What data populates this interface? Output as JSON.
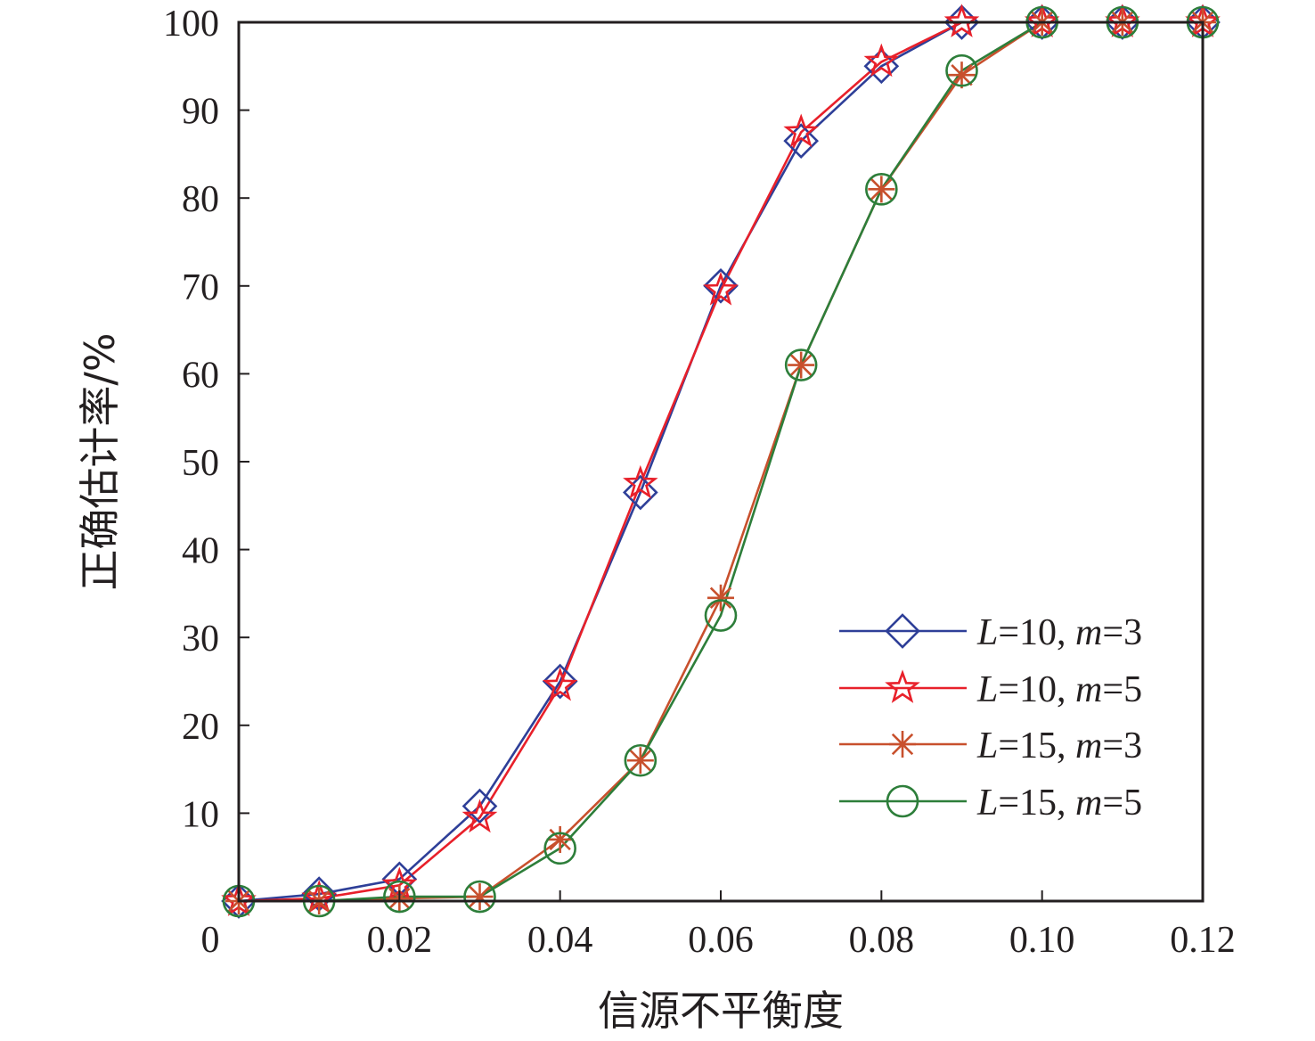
{
  "chart_data": {
    "type": "line",
    "title": "",
    "xlabel": "信源不平衡度",
    "ylabel": "正确估计率/%",
    "xlim": [
      0,
      0.12
    ],
    "ylim": [
      0,
      100
    ],
    "grid": false,
    "legend_position": "bottom-right",
    "x_tick_values": [
      0,
      0.02,
      0.04,
      0.06,
      0.08,
      0.1,
      0.12
    ],
    "x_tick_labels": [
      "0",
      "0.02",
      "0.04",
      "0.06",
      "0.08",
      "0.10",
      "0.12"
    ],
    "y_tick_values": [
      10,
      20,
      30,
      40,
      50,
      60,
      70,
      80,
      90,
      100
    ],
    "y_tick_labels": [
      "10",
      "20",
      "30",
      "40",
      "50",
      "60",
      "70",
      "80",
      "90",
      "100"
    ],
    "x": [
      0,
      0.01,
      0.02,
      0.03,
      0.04,
      0.05,
      0.06,
      0.07,
      0.08,
      0.09,
      0.1,
      0.11,
      0.12
    ],
    "series": [
      {
        "name": "L=10, m=3",
        "legend": {
          "L": "L",
          "Lval": "=10, ",
          "m": "m",
          "mval": "=3"
        },
        "color": "#2e3f98",
        "marker": "diamond",
        "values": [
          0,
          0.8,
          2.5,
          10.8,
          25,
          46.5,
          70,
          86.5,
          95,
          100,
          100,
          100,
          100
        ]
      },
      {
        "name": "L=10, m=5",
        "legend": {
          "L": "L",
          "Lval": "=10, ",
          "m": "m",
          "mval": "=5"
        },
        "color": "#e8202a",
        "marker": "star",
        "values": [
          0,
          0.3,
          1.8,
          9.5,
          24.5,
          47.5,
          69.5,
          87.5,
          95.5,
          100,
          100,
          100,
          100
        ]
      },
      {
        "name": "L=15, m=3",
        "legend": {
          "L": "L",
          "Lval": "=15, ",
          "m": "m",
          "mval": "=3"
        },
        "color": "#c8502d",
        "marker": "asterisk",
        "values": [
          0,
          0,
          0.3,
          0.5,
          7,
          16,
          34.5,
          61,
          81,
          94,
          100,
          100,
          100
        ]
      },
      {
        "name": "L=15, m=5",
        "legend": {
          "L": "L",
          "Lval": "=15, ",
          "m": "m",
          "mval": "=5"
        },
        "color": "#2d7e3a",
        "marker": "circle",
        "values": [
          0,
          0,
          0.5,
          0.5,
          6,
          16,
          32.5,
          61,
          81,
          94.5,
          100,
          100,
          100
        ]
      }
    ]
  }
}
